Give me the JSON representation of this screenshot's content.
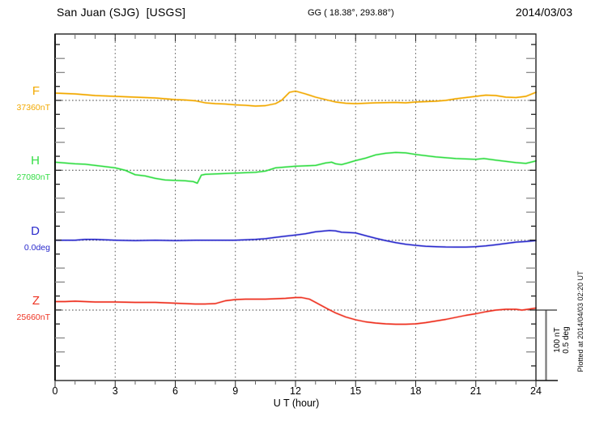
{
  "header": {
    "station": "San Juan (SJG)  [USGS]",
    "coords": "GG ( 18.38°, 293.88°)",
    "date": "2014/03/03"
  },
  "footer": {
    "xlabel": "U T (hour)",
    "plotted_at": "Plotted at 2014/04/03 02:20 UT"
  },
  "scale_bar": {
    "labels": [
      "100 nT",
      "0.5 deg"
    ],
    "nT_per_division": 100,
    "deg_per_division": 0.5
  },
  "chart_data": {
    "type": "line",
    "title": "San Juan (SJG) [USGS] magnetogram 2014/03/03",
    "xlabel": "U T (hour)",
    "xlim": [
      0,
      24
    ],
    "x_ticks": [
      0,
      3,
      6,
      9,
      12,
      15,
      18,
      21,
      24
    ],
    "x_minor_tick_step_hours": 1,
    "grid": "dotted vertical gridlines every 3 h; dotted horizontal reference line per channel",
    "legend_position": "left margin channel labels",
    "points_format": "[hour_UT, offset_from_reference_in_channel_unit]",
    "series": [
      {
        "name": "F",
        "label": "F",
        "unit": "nT",
        "color": "#f2a900",
        "reference_label": "37360nT",
        "reference_value": 37360,
        "points": [
          [
            0,
            10.3
          ],
          [
            1,
            9.2
          ],
          [
            2,
            6.9
          ],
          [
            3,
            5.7
          ],
          [
            4,
            4.6
          ],
          [
            5,
            3.4
          ],
          [
            6,
            1.1
          ],
          [
            6.5,
            0.6
          ],
          [
            7,
            -0.6
          ],
          [
            7.5,
            -3.4
          ],
          [
            8,
            -4.6
          ],
          [
            8.5,
            -5.2
          ],
          [
            9,
            -6.3
          ],
          [
            9.5,
            -7.0
          ],
          [
            10,
            -8.0
          ],
          [
            10.5,
            -7.5
          ],
          [
            11,
            -4.6
          ],
          [
            11.3,
            0
          ],
          [
            11.7,
            11.5
          ],
          [
            12,
            13.2
          ],
          [
            12.5,
            9.2
          ],
          [
            13,
            4.6
          ],
          [
            13.5,
            1.1
          ],
          [
            14,
            -2.3
          ],
          [
            14.5,
            -4.0
          ],
          [
            15,
            -4.6
          ],
          [
            16,
            -3.4
          ],
          [
            17,
            -2.9
          ],
          [
            17.5,
            -3.4
          ],
          [
            18,
            -2.3
          ],
          [
            19,
            -1.1
          ],
          [
            19.5,
            0
          ],
          [
            20,
            2.3
          ],
          [
            21,
            5.7
          ],
          [
            21.5,
            7.5
          ],
          [
            22,
            6.9
          ],
          [
            22.5,
            4.6
          ],
          [
            23,
            4.0
          ],
          [
            23.5,
            5.7
          ],
          [
            24,
            11.5
          ]
        ]
      },
      {
        "name": "H",
        "label": "H",
        "unit": "nT",
        "color": "#33dd44",
        "reference_label": "27080nT",
        "reference_value": 27080,
        "points": [
          [
            0,
            11.5
          ],
          [
            0.5,
            10.3
          ],
          [
            1,
            9.2
          ],
          [
            1.5,
            8.6
          ],
          [
            2,
            6.9
          ],
          [
            2.5,
            5.2
          ],
          [
            3,
            3.4
          ],
          [
            3.5,
            0
          ],
          [
            4,
            -6.3
          ],
          [
            4.5,
            -8.0
          ],
          [
            5,
            -11.5
          ],
          [
            5.5,
            -13.8
          ],
          [
            6,
            -14.4
          ],
          [
            6.5,
            -14.9
          ],
          [
            6.9,
            -16.1
          ],
          [
            7.1,
            -18.4
          ],
          [
            7.3,
            -6.9
          ],
          [
            7.5,
            -5.7
          ],
          [
            8,
            -5.2
          ],
          [
            8.5,
            -4.6
          ],
          [
            9,
            -4.0
          ],
          [
            9.5,
            -3.4
          ],
          [
            10,
            -2.9
          ],
          [
            10.5,
            -1.1
          ],
          [
            11,
            3.4
          ],
          [
            11.5,
            4.6
          ],
          [
            12,
            5.7
          ],
          [
            12.5,
            6.3
          ],
          [
            13,
            6.9
          ],
          [
            13.5,
            10.3
          ],
          [
            13.8,
            11.5
          ],
          [
            14,
            9.2
          ],
          [
            14.3,
            8.0
          ],
          [
            14.6,
            10.3
          ],
          [
            15,
            13.8
          ],
          [
            15.5,
            17.2
          ],
          [
            16,
            21.8
          ],
          [
            16.5,
            24.1
          ],
          [
            17,
            25.3
          ],
          [
            17.5,
            24.7
          ],
          [
            18,
            22.4
          ],
          [
            18.5,
            20.7
          ],
          [
            19,
            19.0
          ],
          [
            19.5,
            17.8
          ],
          [
            20,
            16.7
          ],
          [
            20.5,
            16.1
          ],
          [
            21,
            15.5
          ],
          [
            21.4,
            16.7
          ],
          [
            21.7,
            15.5
          ],
          [
            22,
            14.4
          ],
          [
            22.5,
            12.6
          ],
          [
            23,
            10.9
          ],
          [
            23.5,
            9.8
          ],
          [
            24,
            13.2
          ]
        ]
      },
      {
        "name": "D",
        "label": "D",
        "unit": "deg",
        "color": "#2a2acc",
        "reference_label": "0.0deg",
        "reference_value": 0.0,
        "points": [
          [
            0,
            0
          ],
          [
            1,
            0
          ],
          [
            1.5,
            0.006
          ],
          [
            2,
            0.006
          ],
          [
            3,
            0
          ],
          [
            4,
            -0.003
          ],
          [
            5,
            0
          ],
          [
            6,
            -0.003
          ],
          [
            7,
            0
          ],
          [
            8,
            0
          ],
          [
            9,
            0
          ],
          [
            10,
            0.006
          ],
          [
            10.5,
            0.011
          ],
          [
            11,
            0.02
          ],
          [
            11.5,
            0.029
          ],
          [
            12,
            0.037
          ],
          [
            12.5,
            0.046
          ],
          [
            13,
            0.06
          ],
          [
            13.7,
            0.069
          ],
          [
            14,
            0.066
          ],
          [
            14.3,
            0.057
          ],
          [
            15,
            0.052
          ],
          [
            15.5,
            0.032
          ],
          [
            16,
            0.014
          ],
          [
            16.5,
            -0.003
          ],
          [
            17,
            -0.017
          ],
          [
            17.5,
            -0.029
          ],
          [
            18,
            -0.037
          ],
          [
            18.5,
            -0.043
          ],
          [
            19,
            -0.046
          ],
          [
            19.5,
            -0.048
          ],
          [
            20,
            -0.049
          ],
          [
            20.5,
            -0.049
          ],
          [
            21,
            -0.046
          ],
          [
            21.5,
            -0.04
          ],
          [
            22,
            -0.032
          ],
          [
            22.5,
            -0.023
          ],
          [
            23,
            -0.014
          ],
          [
            23.5,
            -0.009
          ],
          [
            24,
            -0.003
          ]
        ]
      },
      {
        "name": "Z",
        "label": "Z",
        "unit": "nT",
        "color": "#ee3322",
        "reference_label": "25660nT",
        "reference_value": 25660,
        "points": [
          [
            0,
            12.1
          ],
          [
            0.5,
            12.1
          ],
          [
            1,
            12.6
          ],
          [
            1.5,
            12.1
          ],
          [
            2,
            11.5
          ],
          [
            3,
            11.5
          ],
          [
            4,
            10.9
          ],
          [
            5,
            10.9
          ],
          [
            5.5,
            10.3
          ],
          [
            6,
            9.8
          ],
          [
            6.5,
            9.2
          ],
          [
            7,
            8.6
          ],
          [
            7.5,
            8.6
          ],
          [
            8,
            9.2
          ],
          [
            8.5,
            13.2
          ],
          [
            9,
            14.9
          ],
          [
            9.5,
            15.5
          ],
          [
            10,
            15.5
          ],
          [
            10.5,
            15.5
          ],
          [
            11,
            16.1
          ],
          [
            11.5,
            16.7
          ],
          [
            12,
            17.8
          ],
          [
            12.3,
            17.8
          ],
          [
            12.7,
            15.5
          ],
          [
            13,
            10.9
          ],
          [
            13.3,
            6.3
          ],
          [
            13.6,
            1.7
          ],
          [
            14,
            -4.0
          ],
          [
            14.5,
            -9.8
          ],
          [
            15,
            -13.8
          ],
          [
            15.5,
            -16.7
          ],
          [
            16,
            -18.4
          ],
          [
            16.5,
            -19.5
          ],
          [
            17,
            -20.1
          ],
          [
            17.5,
            -20.1
          ],
          [
            18,
            -19.5
          ],
          [
            18.5,
            -17.8
          ],
          [
            19,
            -15.5
          ],
          [
            19.5,
            -13.2
          ],
          [
            20,
            -10.3
          ],
          [
            20.5,
            -7.5
          ],
          [
            21,
            -5.2
          ],
          [
            21.5,
            -2.3
          ],
          [
            22,
            0
          ],
          [
            22.5,
            1.1
          ],
          [
            23,
            1.1
          ],
          [
            23.3,
            0
          ],
          [
            23.6,
            1.1
          ],
          [
            24,
            2.9
          ]
        ]
      }
    ]
  }
}
